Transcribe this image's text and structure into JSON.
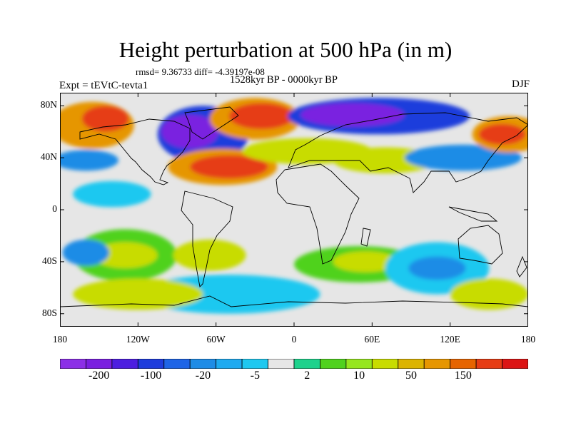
{
  "title": "Height perturbation at 500 hPa (in m)",
  "stats": "rmsd= 9.36733 diff= -4.39197e-08",
  "period": "1528kyr BP - 0000kyr BP",
  "experiment": "Expt = tEVtC-tevta1",
  "season": "DJF",
  "map": {
    "projection": "cylindrical-equidistant",
    "lon_range": [
      -180,
      180
    ],
    "lat_range": [
      -90,
      90
    ],
    "y_ticks": [
      {
        "lat": 80,
        "label": "80N"
      },
      {
        "lat": 40,
        "label": "40N"
      },
      {
        "lat": 0,
        "label": "0"
      },
      {
        "lat": -40,
        "label": "40S"
      },
      {
        "lat": -80,
        "label": "80S"
      }
    ],
    "x_ticks": [
      {
        "lon": -180,
        "label": "180"
      },
      {
        "lon": -120,
        "label": "120W"
      },
      {
        "lon": -60,
        "label": "60W"
      },
      {
        "lon": 0,
        "label": "0"
      },
      {
        "lon": 60,
        "label": "60E"
      },
      {
        "lon": 120,
        "label": "120E"
      },
      {
        "lon": 180,
        "label": "180"
      }
    ],
    "background_color": "#e6e6e6",
    "anomaly_regions": [
      {
        "lon": -155,
        "lat": 65,
        "rx": 32,
        "ry": 18,
        "level": 3
      },
      {
        "lon": -145,
        "lat": 70,
        "rx": 18,
        "ry": 10,
        "level": 4
      },
      {
        "lon": -160,
        "lat": 38,
        "rx": 25,
        "ry": 8,
        "level": -2
      },
      {
        "lon": -70,
        "lat": 58,
        "rx": 35,
        "ry": 22,
        "level": -3
      },
      {
        "lon": -80,
        "lat": 60,
        "rx": 22,
        "ry": 13,
        "level": -4
      },
      {
        "lon": -30,
        "lat": 70,
        "rx": 35,
        "ry": 16,
        "level": 3
      },
      {
        "lon": -25,
        "lat": 72,
        "rx": 25,
        "ry": 10,
        "level": 4
      },
      {
        "lon": -55,
        "lat": 33,
        "rx": 42,
        "ry": 14,
        "level": 3
      },
      {
        "lon": -50,
        "lat": 33,
        "rx": 30,
        "ry": 9,
        "level": 4
      },
      {
        "lon": 10,
        "lat": 45,
        "rx": 50,
        "ry": 10,
        "level": 2
      },
      {
        "lon": 65,
        "lat": 72,
        "rx": 70,
        "ry": 14,
        "level": -3
      },
      {
        "lon": 45,
        "lat": 73,
        "rx": 40,
        "ry": 9,
        "level": -4
      },
      {
        "lon": 70,
        "lat": 38,
        "rx": 40,
        "ry": 10,
        "level": 2
      },
      {
        "lon": 130,
        "lat": 40,
        "rx": 45,
        "ry": 10,
        "level": -2
      },
      {
        "lon": 165,
        "lat": 58,
        "rx": 28,
        "ry": 14,
        "level": 3
      },
      {
        "lon": 160,
        "lat": 58,
        "rx": 18,
        "ry": 8,
        "level": 4
      },
      {
        "lon": -140,
        "lat": 12,
        "rx": 30,
        "ry": 10,
        "level": -1
      },
      {
        "lon": -130,
        "lat": -35,
        "rx": 40,
        "ry": 20,
        "level": 1
      },
      {
        "lon": -130,
        "lat": -35,
        "rx": 25,
        "ry": 10,
        "level": 2
      },
      {
        "lon": -160,
        "lat": -33,
        "rx": 18,
        "ry": 10,
        "level": -2
      },
      {
        "lon": -65,
        "lat": -35,
        "rx": 28,
        "ry": 12,
        "level": 2
      },
      {
        "lon": -50,
        "lat": -65,
        "rx": 70,
        "ry": 15,
        "level": -1
      },
      {
        "lon": -120,
        "lat": -65,
        "rx": 50,
        "ry": 12,
        "level": 2
      },
      {
        "lon": 50,
        "lat": -42,
        "rx": 50,
        "ry": 14,
        "level": 1
      },
      {
        "lon": 55,
        "lat": -40,
        "rx": 25,
        "ry": 8,
        "level": 2
      },
      {
        "lon": 110,
        "lat": -45,
        "rx": 40,
        "ry": 20,
        "level": -1
      },
      {
        "lon": 110,
        "lat": -45,
        "rx": 22,
        "ry": 9,
        "level": -2
      },
      {
        "lon": 150,
        "lat": -65,
        "rx": 30,
        "ry": 12,
        "level": 2
      }
    ]
  },
  "colorbar": {
    "colors": [
      "#8c30e6",
      "#7a20e0",
      "#4d1ee0",
      "#1e3cdc",
      "#1e64e6",
      "#1e8ce6",
      "#1eaaf0",
      "#1ec8f0",
      "#e6e6e6",
      "#1ed28c",
      "#50d21e",
      "#96e61e",
      "#c8dc00",
      "#dcb400",
      "#e69600",
      "#e66400",
      "#e63c14",
      "#dc1414"
    ],
    "labels": [
      "-200",
      "-100",
      "-20",
      "-5",
      "2",
      "10",
      "50",
      "150"
    ]
  }
}
